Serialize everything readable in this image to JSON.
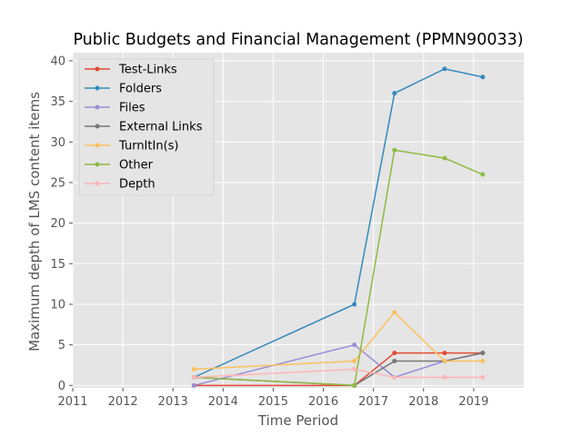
{
  "chart_data": {
    "type": "line",
    "title": "Public Budgets and Financial Management (PPMN90033)",
    "xlabel": "Time Period",
    "ylabel": "Maximum depth of LMS content items",
    "xlim": [
      2011.0,
      2020.0
    ],
    "ylim": [
      -0.3,
      41.0
    ],
    "x_ticks": [
      "2011",
      "2012",
      "2013",
      "2014",
      "2015",
      "2016",
      "2017",
      "2018",
      "2019"
    ],
    "y_ticks": [
      "0",
      "5",
      "10",
      "15",
      "20",
      "25",
      "30",
      "35",
      "40"
    ],
    "grid": true,
    "legend_position": "top-left",
    "x": [
      2013.42,
      2016.62,
      2017.42,
      2018.42,
      2019.18
    ],
    "series": [
      {
        "name": "Test-Links",
        "color": "#E24A33",
        "values": [
          0,
          0,
          4,
          4,
          4
        ]
      },
      {
        "name": "Folders",
        "color": "#348ABD",
        "values": [
          1,
          10,
          36,
          39,
          38
        ]
      },
      {
        "name": "Files",
        "color": "#988ED5",
        "values": [
          0,
          5,
          1,
          3,
          4
        ]
      },
      {
        "name": "External Links",
        "color": "#777777",
        "values": [
          1,
          0,
          3,
          3,
          4
        ]
      },
      {
        "name": "TurnItIn(s)",
        "color": "#FBC15E",
        "values": [
          2,
          3,
          9,
          3,
          3
        ]
      },
      {
        "name": "Other",
        "color": "#8EBA42",
        "values": [
          1,
          0,
          29,
          28,
          26
        ]
      },
      {
        "name": "Depth",
        "color": "#FFB5B8",
        "values": [
          1,
          2,
          1,
          1,
          1
        ]
      }
    ]
  }
}
